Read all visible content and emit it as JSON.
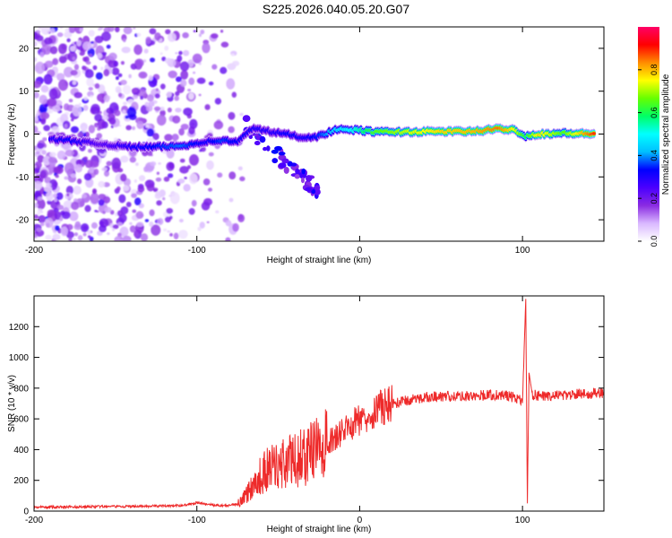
{
  "chart_data": [
    {
      "type": "heatmap",
      "title": "S225.2026.040.05.20.G07",
      "xlabel": "Height of straight line (km)",
      "ylabel": "Frequency (Hz)",
      "xlim": [
        -200,
        150
      ],
      "ylim": [
        -25,
        25
      ],
      "xticks": [
        -200,
        -100,
        0,
        100
      ],
      "yticks": [
        -20,
        -10,
        0,
        10,
        20
      ],
      "colorbar": {
        "label": "Normalized spectral amplitude",
        "range": [
          0.0,
          1.0
        ],
        "ticks": [
          0.0,
          0.2,
          0.4,
          0.6,
          0.8
        ],
        "colormap": [
          "#ffffff",
          "#d9b8ff",
          "#8a2be2",
          "#4b00ff",
          "#0000ff",
          "#00bfff",
          "#00ffff",
          "#00ff66",
          "#66ff00",
          "#ffff00",
          "#ff8c00",
          "#ff0000",
          "#ff0066"
        ]
      },
      "ridge": [
        {
          "x": -190,
          "y": -1.2,
          "a": 0.28
        },
        {
          "x": -178,
          "y": -1.5,
          "a": 0.32
        },
        {
          "x": -160,
          "y": -2.3,
          "a": 0.22
        },
        {
          "x": -140,
          "y": -3.0,
          "a": 0.3
        },
        {
          "x": -125,
          "y": -3.0,
          "a": 0.34
        },
        {
          "x": -110,
          "y": -2.8,
          "a": 0.38
        },
        {
          "x": -95,
          "y": -1.8,
          "a": 0.3
        },
        {
          "x": -85,
          "y": -1.5,
          "a": 0.36
        },
        {
          "x": -75,
          "y": -1.8,
          "a": 0.32
        },
        {
          "x": -65,
          "y": 1.5,
          "a": 0.3
        },
        {
          "x": -55,
          "y": 0.5,
          "a": 0.28
        },
        {
          "x": -45,
          "y": 0.0,
          "a": 0.32
        },
        {
          "x": -35,
          "y": -0.8,
          "a": 0.3
        },
        {
          "x": -25,
          "y": -0.5,
          "a": 0.35
        },
        {
          "x": -15,
          "y": 1.0,
          "a": 0.45
        },
        {
          "x": -5,
          "y": 1.0,
          "a": 0.5
        },
        {
          "x": 10,
          "y": 0.5,
          "a": 0.65
        },
        {
          "x": 30,
          "y": 0.5,
          "a": 0.72
        },
        {
          "x": 50,
          "y": 0.6,
          "a": 0.78
        },
        {
          "x": 70,
          "y": 0.6,
          "a": 0.8
        },
        {
          "x": 85,
          "y": 1.2,
          "a": 0.85
        },
        {
          "x": 95,
          "y": 1.0,
          "a": 0.75
        },
        {
          "x": 102,
          "y": -0.5,
          "a": 0.6
        },
        {
          "x": 110,
          "y": 0.0,
          "a": 0.78
        },
        {
          "x": 125,
          "y": 0.2,
          "a": 0.65
        },
        {
          "x": 145,
          "y": 0.0,
          "a": 0.9
        }
      ]
    },
    {
      "type": "line",
      "title": "",
      "xlabel": "Height of straight line (km)",
      "ylabel": "SNR (10 * v/v)",
      "xlim": [
        -200,
        150
      ],
      "ylim": [
        0,
        1400
      ],
      "xticks": [
        -200,
        -100,
        0,
        100
      ],
      "yticks": [
        0,
        200,
        400,
        600,
        800,
        1000,
        1200
      ],
      "series": [
        {
          "name": "SNR",
          "color": "#ee2a2a",
          "x": [
            -200,
            -150,
            -110,
            -100,
            -90,
            -80,
            -75,
            -70,
            -65,
            -60,
            -55,
            -50,
            -45,
            -40,
            -35,
            -30,
            -25,
            -20,
            -15,
            -10,
            -5,
            0,
            10,
            20,
            30,
            40,
            50,
            60,
            70,
            80,
            90,
            95,
            100,
            102,
            103,
            104,
            106,
            110,
            120,
            130,
            140,
            150
          ],
          "values": [
            25,
            30,
            35,
            55,
            38,
            35,
            50,
            100,
            180,
            240,
            280,
            300,
            320,
            330,
            350,
            380,
            400,
            440,
            480,
            520,
            560,
            600,
            660,
            700,
            720,
            740,
            745,
            750,
            750,
            755,
            750,
            740,
            720,
            1380,
            50,
            900,
            760,
            750,
            755,
            760,
            765,
            770
          ]
        }
      ]
    }
  ]
}
